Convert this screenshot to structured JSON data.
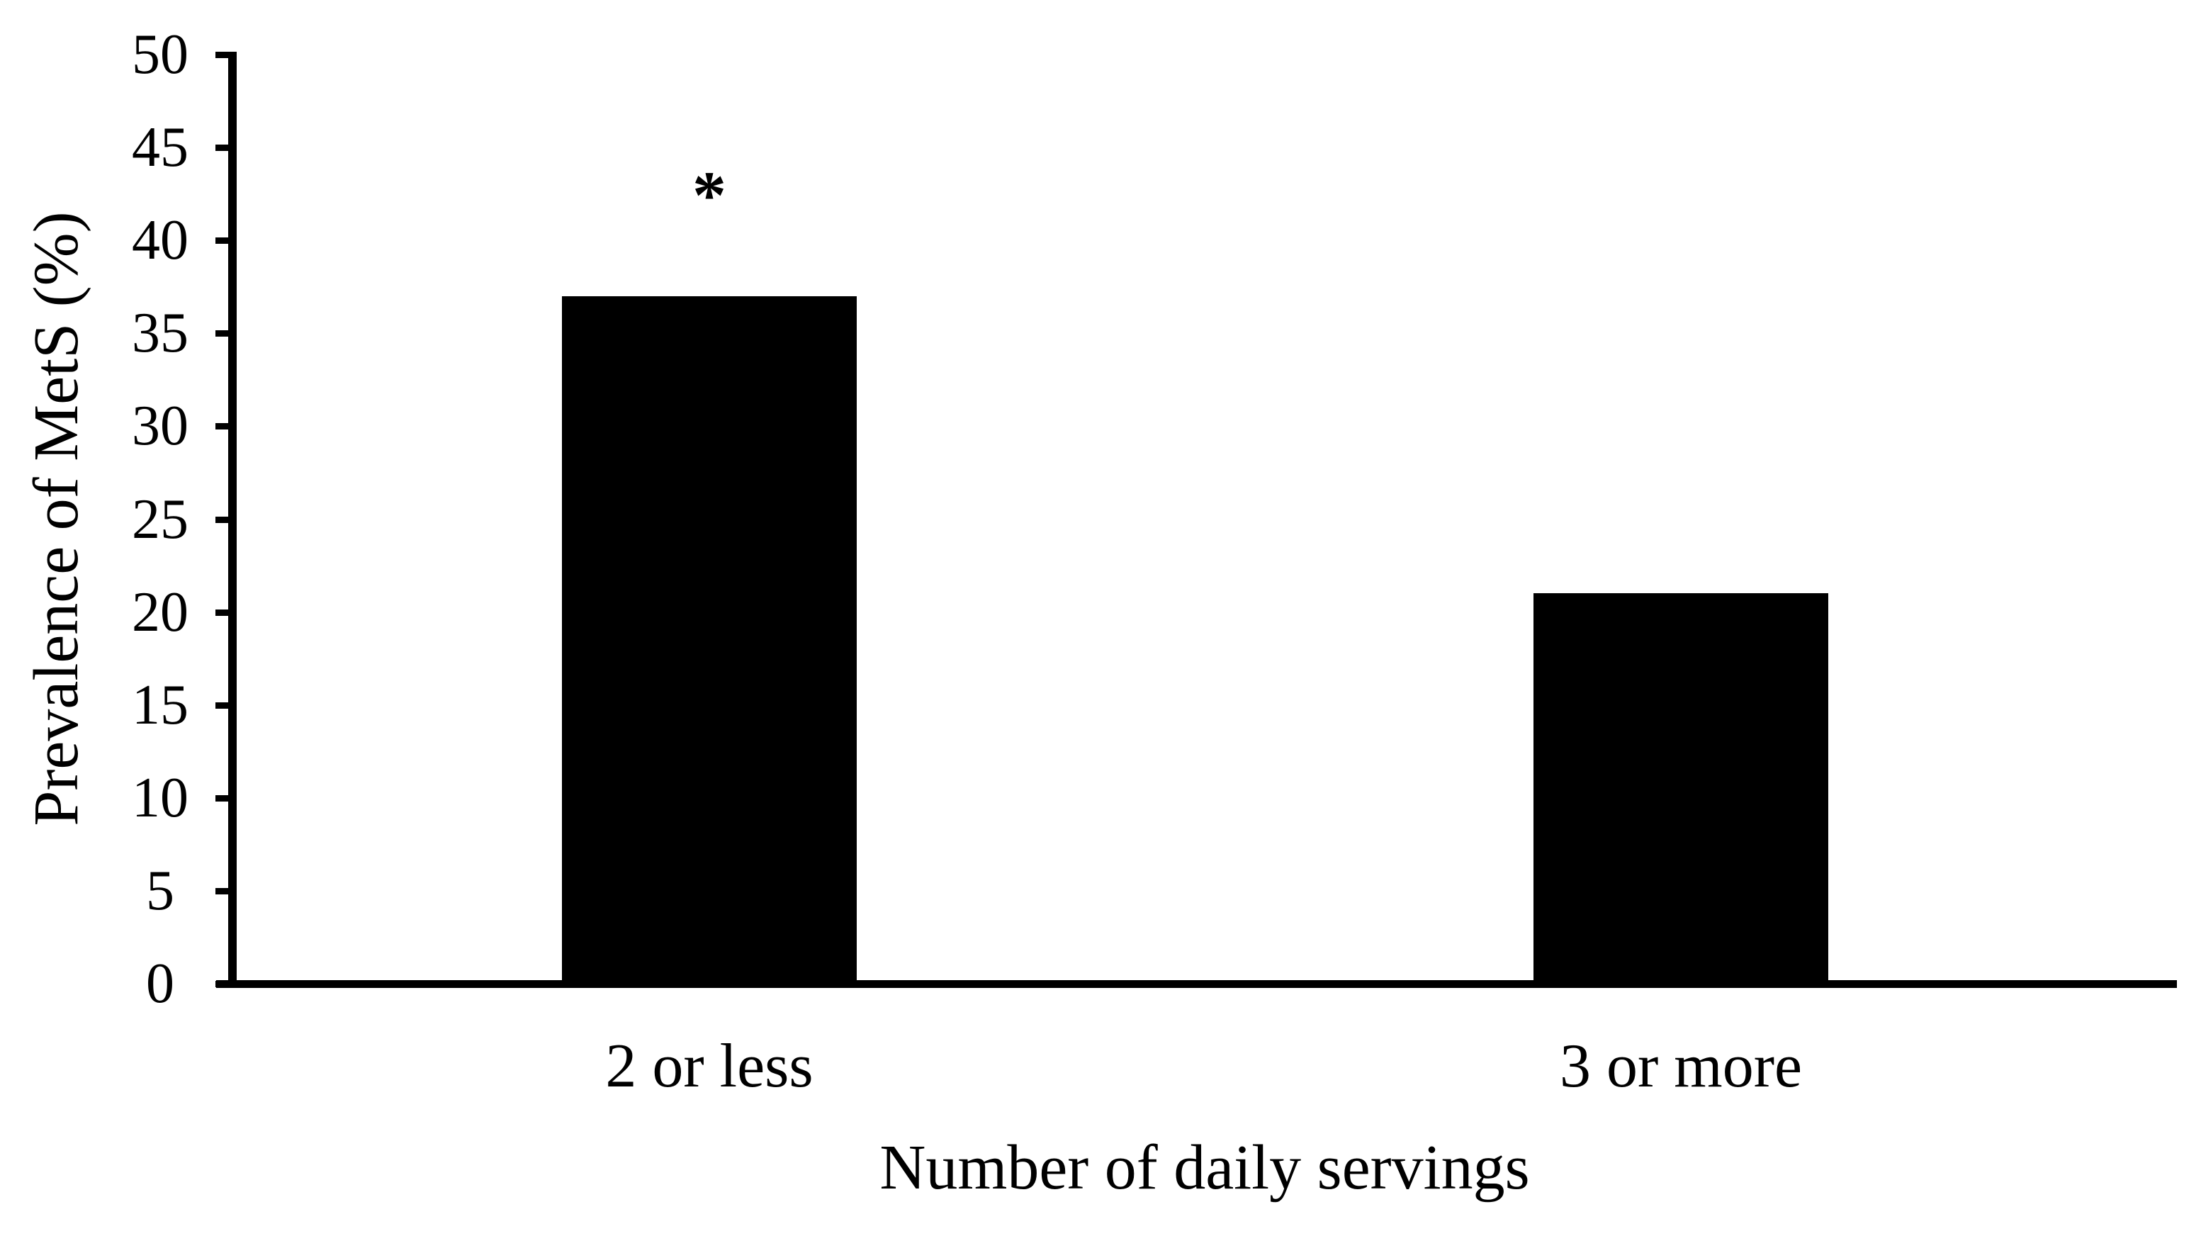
{
  "figure": {
    "background_color": "#ffffff",
    "ink_color": "#000000"
  },
  "chart_data": {
    "type": "bar",
    "title": "",
    "categories": [
      "2 or less",
      "3 or more"
    ],
    "values": [
      37,
      21
    ],
    "xlabel": "Number of daily servings",
    "ylabel": "Prevalence of MetS (%)",
    "ylim": [
      0,
      50
    ],
    "ytick_step": 5,
    "yticks": [
      0,
      5,
      10,
      15,
      20,
      25,
      30,
      35,
      40,
      45,
      50
    ],
    "bar_color": "#000000",
    "grid": false,
    "legend": "none",
    "annotations": [
      {
        "text": "*",
        "category": "2 or less"
      }
    ]
  }
}
